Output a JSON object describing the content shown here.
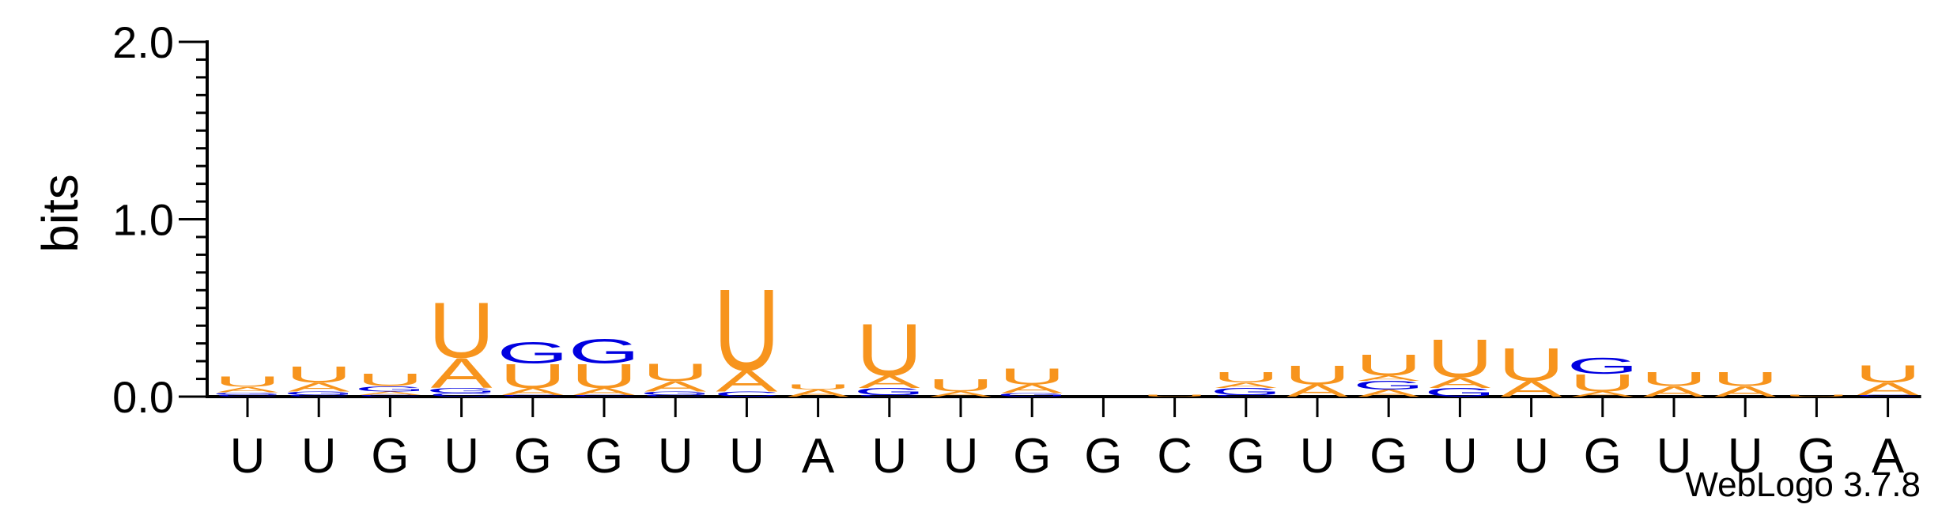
{
  "chart_data": {
    "type": "sequence_logo",
    "ylabel": "bits",
    "ylim": [
      0,
      2.0
    ],
    "y_ticks": [
      "0.0",
      "1.0",
      "2.0"
    ],
    "y_tick_values": [
      0,
      1.0,
      2.0
    ],
    "y_minor_step": 0.1,
    "consensus": [
      "U",
      "U",
      "G",
      "U",
      "G",
      "G",
      "U",
      "U",
      "A",
      "U",
      "U",
      "G",
      "G",
      "C",
      "G",
      "U",
      "G",
      "U",
      "U",
      "G",
      "U",
      "U",
      "G",
      "A"
    ],
    "colors": {
      "A": "#f7941d",
      "U": "#f7941d",
      "G": "#0000e0",
      "C": "#0000e0"
    },
    "positions": [
      {
        "stack": [
          [
            "C",
            0.01
          ],
          [
            "G",
            0.015
          ],
          [
            "A",
            0.03
          ],
          [
            "U",
            0.06
          ]
        ]
      },
      {
        "stack": [
          [
            "C",
            0.01
          ],
          [
            "G",
            0.02
          ],
          [
            "A",
            0.05
          ],
          [
            "U",
            0.09
          ]
        ]
      },
      {
        "stack": [
          [
            "C",
            0.01
          ],
          [
            "A",
            0.02
          ],
          [
            "G",
            0.03
          ],
          [
            "U",
            0.07
          ]
        ]
      },
      {
        "stack": [
          [
            "C",
            0.02
          ],
          [
            "G",
            0.03
          ],
          [
            "A",
            0.17
          ],
          [
            "U",
            0.32
          ]
        ]
      },
      {
        "stack": [
          [
            "C",
            0.01
          ],
          [
            "A",
            0.04
          ],
          [
            "U",
            0.14
          ],
          [
            "G",
            0.12
          ]
        ]
      },
      {
        "stack": [
          [
            "C",
            0.01
          ],
          [
            "A",
            0.04
          ],
          [
            "U",
            0.14
          ],
          [
            "G",
            0.14
          ]
        ]
      },
      {
        "stack": [
          [
            "C",
            0.01
          ],
          [
            "G",
            0.02
          ],
          [
            "A",
            0.06
          ],
          [
            "U",
            0.1
          ]
        ]
      },
      {
        "stack": [
          [
            "C",
            0.03
          ],
          [
            "A",
            0.12
          ],
          [
            "U",
            0.47
          ]
        ]
      },
      {
        "stack": [
          [
            "A",
            0.04
          ],
          [
            "U",
            0.03
          ]
        ]
      },
      {
        "stack": [
          [
            "C",
            0.01
          ],
          [
            "G",
            0.04
          ],
          [
            "A",
            0.07
          ],
          [
            "U",
            0.3
          ]
        ]
      },
      {
        "stack": [
          [
            "A",
            0.03
          ],
          [
            "U",
            0.07
          ]
        ]
      },
      {
        "stack": [
          [
            "G",
            0.02
          ],
          [
            "A",
            0.05
          ],
          [
            "U",
            0.09
          ]
        ]
      },
      {
        "stack": []
      },
      {
        "stack": [
          [
            "U",
            0.01
          ]
        ]
      },
      {
        "stack": [
          [
            "C",
            0.01
          ],
          [
            "G",
            0.04
          ],
          [
            "A",
            0.03
          ],
          [
            "U",
            0.06
          ]
        ]
      },
      {
        "stack": [
          [
            "A",
            0.07
          ],
          [
            "U",
            0.11
          ]
        ]
      },
      {
        "stack": [
          [
            "A",
            0.04
          ],
          [
            "G",
            0.05
          ],
          [
            "A",
            0.03
          ],
          [
            "U",
            0.12
          ]
        ]
      },
      {
        "stack": [
          [
            "G",
            0.05
          ],
          [
            "A",
            0.06
          ],
          [
            "U",
            0.22
          ]
        ]
      },
      {
        "stack": [
          [
            "A",
            0.09
          ],
          [
            "U",
            0.19
          ]
        ]
      },
      {
        "stack": [
          [
            "A",
            0.03
          ],
          [
            "U",
            0.1
          ],
          [
            "G",
            0.09
          ]
        ]
      },
      {
        "stack": [
          [
            "A",
            0.06
          ],
          [
            "U",
            0.08
          ]
        ]
      },
      {
        "stack": [
          [
            "A",
            0.06
          ],
          [
            "U",
            0.08
          ]
        ]
      },
      {
        "stack": [
          [
            "U",
            0.01
          ]
        ]
      },
      {
        "stack": [
          [
            "C",
            0.01
          ],
          [
            "A",
            0.07
          ],
          [
            "U",
            0.1
          ]
        ]
      }
    ]
  },
  "credit": "WebLogo 3.7.8"
}
